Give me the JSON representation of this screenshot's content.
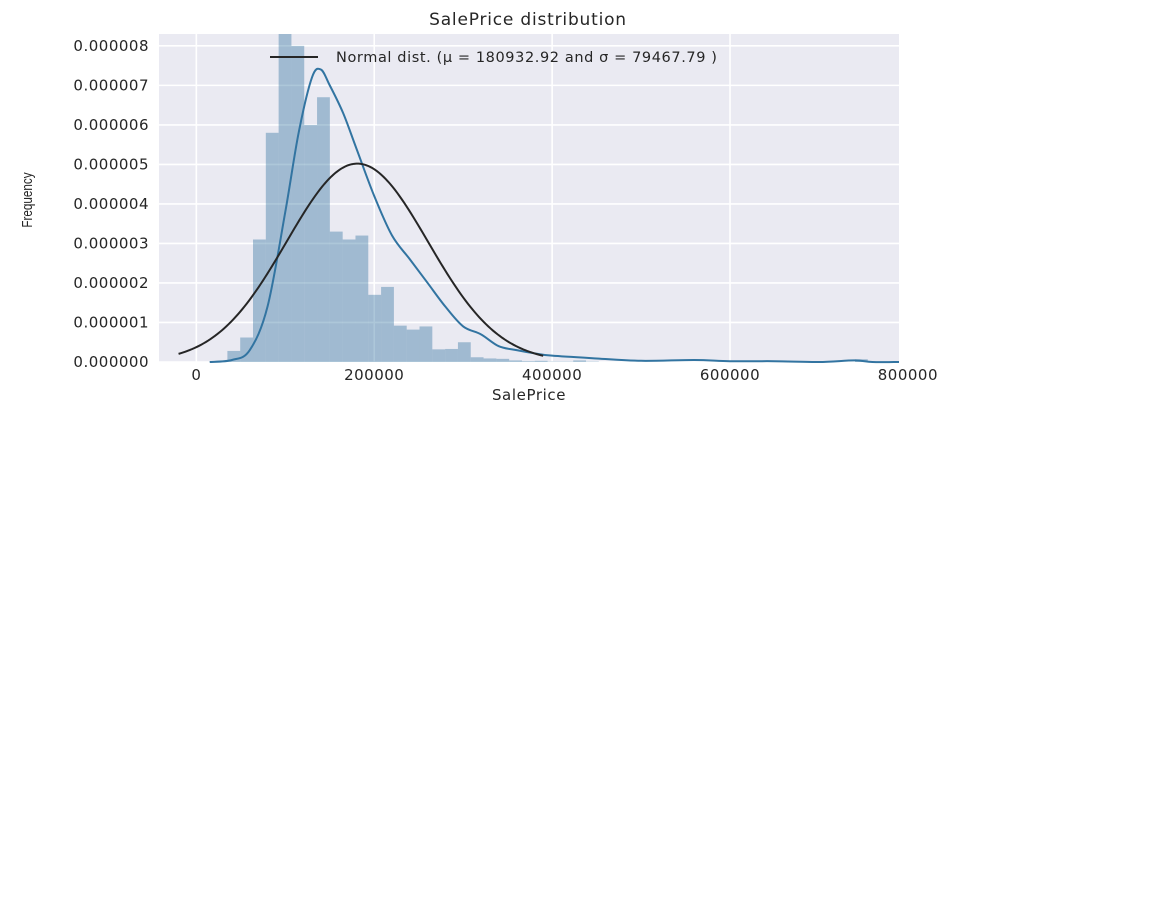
{
  "chart_data": {
    "type": "bar",
    "title": "SalePrice distribution",
    "xlabel": "SalePrice",
    "ylabel": "Frequency",
    "xlim": [
      -42000,
      790000
    ],
    "ylim": [
      0,
      8.3e-06
    ],
    "x_ticks": [
      {
        "value": 0,
        "label": "0"
      },
      {
        "value": 200000,
        "label": "200000"
      },
      {
        "value": 400000,
        "label": "400000"
      },
      {
        "value": 600000,
        "label": "600000"
      },
      {
        "value": 800000,
        "label": "800000"
      }
    ],
    "y_ticks": [
      {
        "value": 0.0,
        "label": "0.000000"
      },
      {
        "value": 1e-06,
        "label": "0.000001"
      },
      {
        "value": 2e-06,
        "label": "0.000002"
      },
      {
        "value": 3e-06,
        "label": "0.000003"
      },
      {
        "value": 4e-06,
        "label": "0.000004"
      },
      {
        "value": 5e-06,
        "label": "0.000005"
      },
      {
        "value": 6e-06,
        "label": "0.000006"
      },
      {
        "value": 7e-06,
        "label": "0.000007"
      },
      {
        "value": 8e-06,
        "label": "0.000008"
      }
    ],
    "grid": true,
    "legend": {
      "location": "top",
      "label": "Normal dist. ($\\mu=$ 180932.92 and $\\sigma=$ 79467.79 )",
      "display": "Normal dist. (μ =  180932.92 and σ =  79467.79 )"
    },
    "histogram": {
      "name": "SalePrice histogram",
      "bin_start": 34900,
      "bin_width": 14400,
      "values": [
        2.8e-07,
        6.2e-07,
        3.1e-06,
        5.8e-06,
        8.3e-06,
        8e-06,
        6e-06,
        6.7e-06,
        3.3e-06,
        3.1e-06,
        3.2e-06,
        1.7e-06,
        1.9e-06,
        9.2e-07,
        8.2e-07,
        9e-07,
        3.2e-07,
        3.3e-07,
        5e-07,
        1.2e-07,
        9e-08,
        8e-08,
        4e-08,
        2e-08,
        3e-08,
        1e-08,
        1e-08,
        4e-08,
        1e-08,
        0.0,
        0.0,
        0.0,
        0.0,
        0.0,
        0.0,
        0.0,
        0.0,
        0.0,
        0.0,
        0.0,
        0.0,
        0.0,
        0.0,
        0.0,
        0.0,
        0.0,
        0.0,
        0.0,
        0.0,
        7e-08
      ]
    },
    "series": [
      {
        "name": "",
        "kind": "kde",
        "color": "#3274a1",
        "x": [
          15000,
          40000,
          60000,
          80000,
          100000,
          115000,
          130000,
          140000,
          150000,
          165000,
          180000,
          200000,
          220000,
          240000,
          260000,
          280000,
          300000,
          320000,
          340000,
          360000,
          380000,
          400000,
          450000,
          500000,
          560000,
          600000,
          650000,
          700000,
          740000,
          760000,
          790000
        ],
        "y": [
          0.0,
          5e-08,
          3e-07,
          1.4e-06,
          3.8e-06,
          5.8e-06,
          7.2e-06,
          7.4e-06,
          7e-06,
          6.3e-06,
          5.4e-06,
          4.2e-06,
          3.2e-06,
          2.6e-06,
          2e-06,
          1.4e-06,
          9e-07,
          7e-07,
          4e-07,
          3e-07,
          2.2e-07,
          1.6e-07,
          9e-08,
          3e-08,
          5e-08,
          2e-08,
          2e-08,
          0.0,
          4e-08,
          0.0,
          0.0
        ]
      },
      {
        "name": "Normal dist.",
        "kind": "normal",
        "color": "#262626",
        "mu": 180932.92,
        "sigma": 79467.79,
        "x_range": [
          -20000,
          390000
        ]
      }
    ],
    "colors": {
      "background": "#eaeaf2",
      "grid": "#ffffff",
      "hist_fill": "#3274a1",
      "hist_opacity": 0.4
    }
  }
}
